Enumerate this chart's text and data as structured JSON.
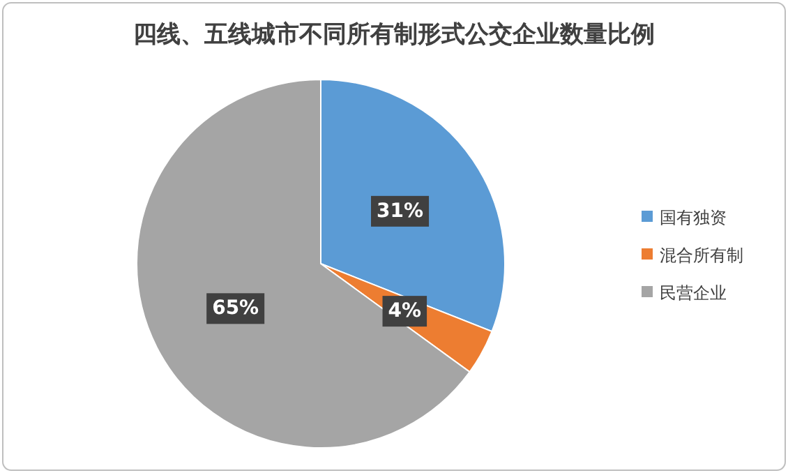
{
  "chart_data": {
    "type": "pie",
    "title": "四线、五线城市不同所有制形式公交企业数量比例",
    "categories": [
      "国有独资",
      "混合所有制",
      "民营企业"
    ],
    "values": [
      31,
      4,
      65
    ],
    "value_labels": [
      "31%",
      "4%",
      "65%"
    ],
    "colors": [
      "#5b9bd5",
      "#ed7d31",
      "#a5a5a5"
    ],
    "legend": "right"
  }
}
